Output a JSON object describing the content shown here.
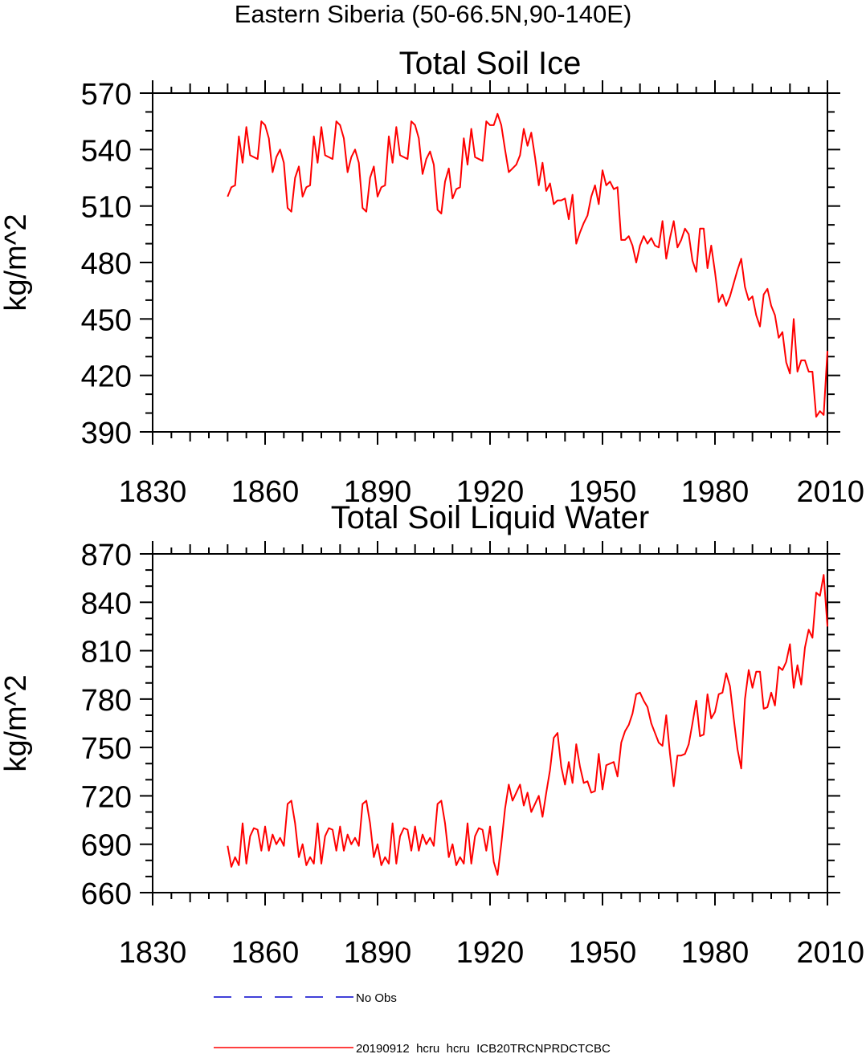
{
  "figure_title": "Eastern Siberia (50-66.5N,90-140E)",
  "legend": {
    "entries": [
      {
        "label": "No Obs",
        "color": "#0000cc",
        "style": "dashed"
      },
      {
        "label": "20190912_hcru_hcru_ICB20TRCNPRDCTCBC",
        "color": "#ff0000",
        "style": "solid"
      }
    ]
  },
  "chart_data": [
    {
      "type": "line",
      "title": "Total Soil Ice",
      "xlabel": "",
      "ylabel": "kg/m^2",
      "xlim": [
        1830,
        2010
      ],
      "ylim": [
        390,
        570
      ],
      "xticks": [
        1830,
        1860,
        1890,
        1920,
        1950,
        1980,
        2010
      ],
      "yticks": [
        390,
        420,
        450,
        480,
        510,
        540,
        570
      ],
      "series": [
        {
          "name": "20190912_hcru_hcru_ICB20TRCNPRDCTCBC",
          "color": "#ff0000",
          "x_start": 1850,
          "x_step": 1,
          "values": [
            515,
            520,
            521,
            547,
            533,
            552,
            537,
            536,
            535,
            555,
            553,
            546,
            528,
            536,
            540,
            533,
            509,
            507,
            525,
            531,
            515,
            520,
            521,
            547,
            533,
            552,
            537,
            536,
            535,
            555,
            553,
            546,
            528,
            536,
            540,
            533,
            509,
            507,
            525,
            531,
            515,
            520,
            521,
            547,
            533,
            552,
            537,
            536,
            535,
            555,
            553,
            546,
            527,
            535,
            539,
            532,
            508,
            506,
            523,
            530,
            514,
            519,
            520,
            546,
            532,
            551,
            536,
            535,
            534,
            555,
            553,
            553,
            559,
            553,
            540,
            528,
            530,
            532,
            537,
            551,
            542,
            549,
            536,
            521,
            533,
            518,
            522,
            511,
            513,
            513,
            514,
            503,
            516,
            490,
            496,
            501,
            505,
            515,
            521,
            511,
            529,
            521,
            523,
            519,
            520,
            492,
            492,
            494,
            489,
            480,
            489,
            494,
            490,
            493,
            489,
            488,
            502,
            482,
            493,
            502,
            488,
            492,
            498,
            495,
            481,
            475,
            498,
            498,
            477,
            489,
            475,
            459,
            463,
            457,
            462,
            469,
            476,
            482,
            467,
            460,
            462,
            452,
            446,
            463,
            466,
            457,
            452,
            440,
            443,
            427,
            421,
            450,
            422,
            428,
            428,
            422,
            422,
            398,
            401,
            399,
            433
          ]
        }
      ]
    },
    {
      "type": "line",
      "title": "Total Soil Liquid Water",
      "xlabel": "",
      "ylabel": "kg/m^2",
      "xlim": [
        1830,
        2010
      ],
      "ylim": [
        660,
        870
      ],
      "xticks": [
        1830,
        1860,
        1890,
        1920,
        1950,
        1980,
        2010
      ],
      "yticks": [
        660,
        690,
        720,
        750,
        780,
        810,
        840,
        870
      ],
      "series": [
        {
          "name": "20190912_hcru_hcru_ICB20TRCNPRDCTCBC",
          "color": "#ff0000",
          "x_start": 1850,
          "x_step": 1,
          "values": [
            689,
            676,
            682,
            677,
            703,
            678,
            695,
            700,
            699,
            686,
            701,
            686,
            696,
            690,
            694,
            689,
            715,
            717,
            703,
            682,
            690,
            677,
            682,
            678,
            703,
            678,
            695,
            700,
            699,
            686,
            701,
            686,
            696,
            690,
            694,
            689,
            715,
            717,
            703,
            682,
            690,
            677,
            682,
            678,
            703,
            678,
            695,
            700,
            699,
            686,
            701,
            686,
            696,
            690,
            694,
            689,
            715,
            717,
            703,
            682,
            690,
            677,
            682,
            678,
            703,
            678,
            695,
            700,
            699,
            686,
            701,
            679,
            671,
            690,
            712,
            727,
            717,
            722,
            727,
            714,
            722,
            710,
            715,
            720,
            707,
            722,
            736,
            756,
            759,
            738,
            727,
            741,
            728,
            752,
            738,
            728,
            729,
            722,
            723,
            746,
            724,
            739,
            740,
            741,
            732,
            753,
            760,
            764,
            771,
            783,
            784,
            779,
            775,
            765,
            759,
            753,
            751,
            770,
            746,
            726,
            745,
            745,
            746,
            752,
            765,
            779,
            757,
            758,
            783,
            768,
            772,
            783,
            784,
            796,
            788,
            768,
            749,
            737,
            780,
            798,
            787,
            797,
            797,
            774,
            775,
            784,
            776,
            800,
            798,
            803,
            814,
            787,
            801,
            789,
            812,
            823,
            818,
            846,
            844,
            857,
            825
          ]
        }
      ]
    }
  ]
}
